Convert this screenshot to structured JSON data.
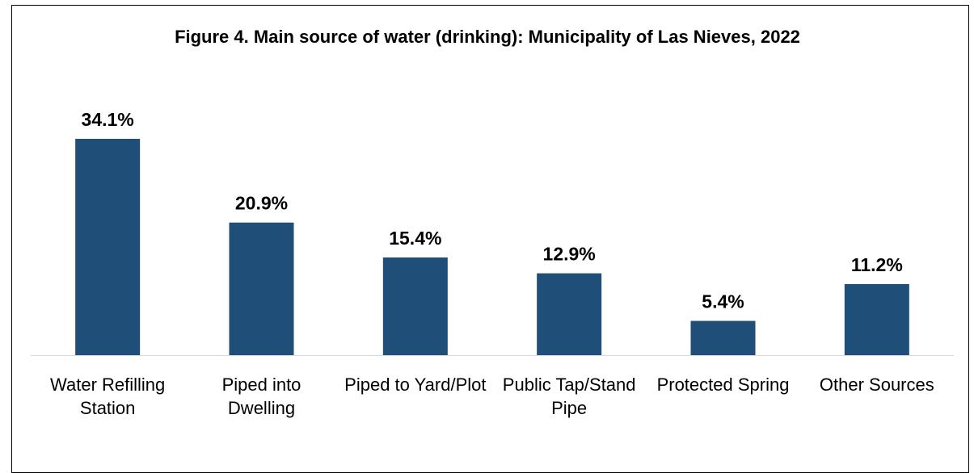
{
  "chart_data": {
    "type": "bar",
    "title": "Figure 4. Main source of water (drinking): Municipality of Las Nieves, 2022",
    "categories": [
      "Water Refilling Station",
      "Piped into Dwelling",
      "Piped to Yard/Plot",
      "Public Tap/Stand Pipe",
      "Protected Spring",
      "Other Sources"
    ],
    "values": [
      34.1,
      20.9,
      15.4,
      12.9,
      5.4,
      11.2
    ],
    "value_labels": [
      "34.1%",
      "20.9%",
      "15.4%",
      "12.9%",
      "5.4%",
      "11.2%"
    ],
    "color": "#1f4e79"
  }
}
